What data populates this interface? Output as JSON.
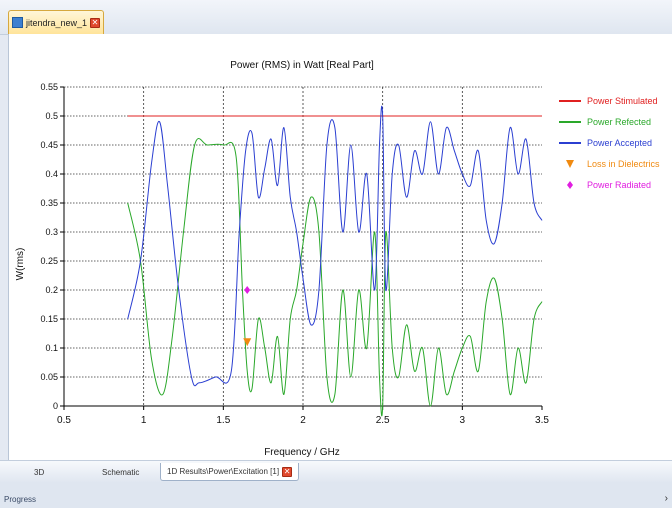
{
  "window": {
    "tab_title": "jitendra_new_1",
    "close_glyph": "✕"
  },
  "bottom_tabs": [
    {
      "label": "3D"
    },
    {
      "label": "Schematic"
    },
    {
      "label": "1D Results\\Power\\Excitation [1]"
    }
  ],
  "statusbar": {
    "label": "Progress",
    "more_glyph": "›"
  },
  "chart_data": {
    "type": "line",
    "title": "Power (RMS) in Watt [Real Part]",
    "xlabel": "Frequency / GHz",
    "ylabel": "W(rms)",
    "xlim": [
      0.5,
      3.5
    ],
    "ylim": [
      0,
      0.55
    ],
    "x_ticks": [
      "0.5",
      "1",
      "1.5",
      "2",
      "2.5",
      "3",
      "3.5"
    ],
    "y_ticks": [
      "0",
      "0.05",
      "0.1",
      "0.15",
      "0.2",
      "0.25",
      "0.3",
      "0.35",
      "0.4",
      "0.45",
      "0.5",
      "0.55"
    ],
    "grid": "dotted",
    "legend_placement": "right",
    "series": [
      {
        "name": "Power Stimulated",
        "color": "#e02020",
        "marker": "line",
        "x": [
          0.9,
          3.5
        ],
        "y": [
          0.5,
          0.5
        ]
      },
      {
        "name": "Power Refected",
        "color": "#2aa82a",
        "marker": "line",
        "x": [
          0.9,
          0.98,
          1.05,
          1.12,
          1.18,
          1.25,
          1.32,
          1.4,
          1.5,
          1.58,
          1.62,
          1.65,
          1.68,
          1.72,
          1.76,
          1.8,
          1.84,
          1.88,
          1.92,
          1.96,
          2.0,
          2.05,
          2.1,
          2.15,
          2.2,
          2.25,
          2.3,
          2.35,
          2.4,
          2.45,
          2.48,
          2.5,
          2.52,
          2.56,
          2.6,
          2.65,
          2.7,
          2.75,
          2.8,
          2.85,
          2.9,
          2.95,
          3.0,
          3.05,
          3.1,
          3.15,
          3.2,
          3.25,
          3.3,
          3.35,
          3.4,
          3.45,
          3.5
        ],
        "y": [
          0.35,
          0.25,
          0.08,
          0.02,
          0.12,
          0.3,
          0.45,
          0.45,
          0.45,
          0.43,
          0.2,
          0.06,
          0.03,
          0.15,
          0.1,
          0.04,
          0.12,
          0.02,
          0.15,
          0.2,
          0.28,
          0.36,
          0.3,
          0.05,
          0.02,
          0.2,
          0.05,
          0.2,
          0.1,
          0.3,
          0.05,
          0.0,
          0.3,
          0.1,
          0.05,
          0.14,
          0.06,
          0.1,
          0.0,
          0.1,
          0.02,
          0.06,
          0.1,
          0.12,
          0.06,
          0.18,
          0.22,
          0.15,
          0.02,
          0.1,
          0.04,
          0.15,
          0.18
        ]
      },
      {
        "name": "Power Accepted",
        "color": "#2b3fd1",
        "marker": "line",
        "x": [
          0.9,
          0.98,
          1.05,
          1.1,
          1.15,
          1.22,
          1.3,
          1.35,
          1.45,
          1.55,
          1.6,
          1.64,
          1.68,
          1.72,
          1.76,
          1.8,
          1.84,
          1.88,
          1.92,
          1.96,
          2.0,
          2.05,
          2.1,
          2.15,
          2.2,
          2.25,
          2.3,
          2.35,
          2.4,
          2.45,
          2.48,
          2.5,
          2.52,
          2.56,
          2.6,
          2.65,
          2.7,
          2.75,
          2.8,
          2.85,
          2.9,
          2.95,
          3.0,
          3.05,
          3.1,
          3.15,
          3.2,
          3.25,
          3.3,
          3.35,
          3.4,
          3.45,
          3.5
        ],
        "y": [
          0.15,
          0.25,
          0.42,
          0.49,
          0.38,
          0.2,
          0.05,
          0.04,
          0.05,
          0.06,
          0.3,
          0.44,
          0.47,
          0.36,
          0.41,
          0.46,
          0.38,
          0.48,
          0.36,
          0.3,
          0.22,
          0.14,
          0.2,
          0.45,
          0.48,
          0.3,
          0.45,
          0.3,
          0.4,
          0.2,
          0.45,
          0.5,
          0.2,
          0.4,
          0.45,
          0.36,
          0.44,
          0.4,
          0.49,
          0.4,
          0.48,
          0.44,
          0.4,
          0.38,
          0.44,
          0.32,
          0.28,
          0.35,
          0.48,
          0.4,
          0.46,
          0.35,
          0.32
        ]
      },
      {
        "name": "Loss in Dielectrics",
        "color": "#f08a10",
        "marker": "triangle-down",
        "x": [
          1.65
        ],
        "y": [
          0.11
        ]
      },
      {
        "name": "Power Radiated",
        "color": "#e01ee0",
        "marker": "diamond",
        "x": [
          1.65
        ],
        "y": [
          0.2
        ]
      }
    ]
  }
}
